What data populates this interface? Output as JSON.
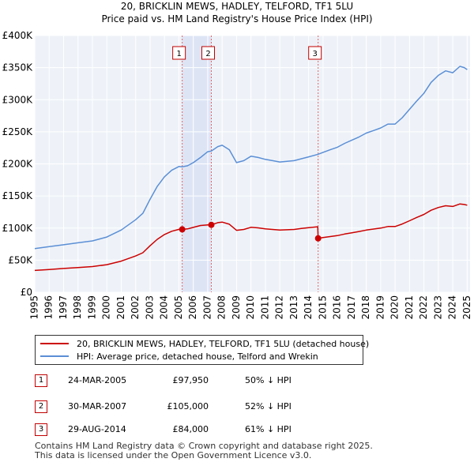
{
  "chart_data": {
    "type": "line",
    "title": "20, BRICKLIN MEWS, HADLEY, TELFORD, TF1 5LU",
    "subtitle": "Price paid vs. HM Land Registry's House Price Index (HPI)",
    "xlim": [
      1995,
      2025.2
    ],
    "ylim": [
      0,
      400000
    ],
    "x_ticks": [
      1995,
      1996,
      1997,
      1998,
      1999,
      2000,
      2001,
      2002,
      2003,
      2004,
      2005,
      2006,
      2007,
      2008,
      2009,
      2010,
      2011,
      2012,
      2013,
      2014,
      2015,
      2016,
      2017,
      2018,
      2019,
      2020,
      2021,
      2022,
      2023,
      2024,
      2025
    ],
    "y_ticks": [
      {
        "value": 0,
        "label": "£0"
      },
      {
        "value": 50000,
        "label": "£50K"
      },
      {
        "value": 100000,
        "label": "£100K"
      },
      {
        "value": 150000,
        "label": "£150K"
      },
      {
        "value": 200000,
        "label": "£200K"
      },
      {
        "value": 250000,
        "label": "£250K"
      },
      {
        "value": 300000,
        "label": "£300K"
      },
      {
        "value": 350000,
        "label": "£350K"
      },
      {
        "value": 400000,
        "label": "£400K"
      }
    ],
    "grid": true,
    "shaded_periods": [
      [
        2005.23,
        2007.25
      ]
    ],
    "series": [
      {
        "name": "HPI: Average price, detached house, Telford and Wrekin",
        "color": "#5b8fd6",
        "points": [
          [
            1995.0,
            68000
          ],
          [
            1996.0,
            71000
          ],
          [
            1997.0,
            74000
          ],
          [
            1998.0,
            77000
          ],
          [
            1999.0,
            80000
          ],
          [
            2000.0,
            86000
          ],
          [
            2001.0,
            97000
          ],
          [
            2002.0,
            113000
          ],
          [
            2002.5,
            123000
          ],
          [
            2003.0,
            145000
          ],
          [
            2003.5,
            165000
          ],
          [
            2004.0,
            180000
          ],
          [
            2004.5,
            190000
          ],
          [
            2005.0,
            196000
          ],
          [
            2005.23,
            195500
          ],
          [
            2005.6,
            197000
          ],
          [
            2006.0,
            202000
          ],
          [
            2006.5,
            210000
          ],
          [
            2007.0,
            219000
          ],
          [
            2007.25,
            220000
          ],
          [
            2007.7,
            227000
          ],
          [
            2008.0,
            229000
          ],
          [
            2008.5,
            222000
          ],
          [
            2009.0,
            202000
          ],
          [
            2009.5,
            205000
          ],
          [
            2010.0,
            212000
          ],
          [
            2010.5,
            210000
          ],
          [
            2011.0,
            207000
          ],
          [
            2011.5,
            205000
          ],
          [
            2012.0,
            203000
          ],
          [
            2012.5,
            204000
          ],
          [
            2013.0,
            205000
          ],
          [
            2013.5,
            208000
          ],
          [
            2014.0,
            211000
          ],
          [
            2014.66,
            215000
          ],
          [
            2015.0,
            218000
          ],
          [
            2015.5,
            222000
          ],
          [
            2016.0,
            226000
          ],
          [
            2016.5,
            232000
          ],
          [
            2017.0,
            237000
          ],
          [
            2017.5,
            242000
          ],
          [
            2018.0,
            248000
          ],
          [
            2018.5,
            252000
          ],
          [
            2019.0,
            256000
          ],
          [
            2019.5,
            262000
          ],
          [
            2020.0,
            262000
          ],
          [
            2020.5,
            272000
          ],
          [
            2021.0,
            285000
          ],
          [
            2021.5,
            298000
          ],
          [
            2022.0,
            310000
          ],
          [
            2022.5,
            327000
          ],
          [
            2023.0,
            338000
          ],
          [
            2023.5,
            345000
          ],
          [
            2024.0,
            342000
          ],
          [
            2024.5,
            352000
          ],
          [
            2024.8,
            350000
          ],
          [
            2025.0,
            347000
          ]
        ]
      },
      {
        "name": "20, BRICKLIN MEWS, HADLEY, TELFORD, TF1 5LU (detached house)",
        "color": "#cc0000",
        "points": [
          [
            1995.0,
            34000
          ],
          [
            1996.0,
            35500
          ],
          [
            1997.0,
            37000
          ],
          [
            1998.0,
            38500
          ],
          [
            1999.0,
            40000
          ],
          [
            2000.0,
            43000
          ],
          [
            2001.0,
            48500
          ],
          [
            2002.0,
            56500
          ],
          [
            2002.5,
            61500
          ],
          [
            2003.0,
            72500
          ],
          [
            2003.5,
            82500
          ],
          [
            2004.0,
            90000
          ],
          [
            2004.5,
            95000
          ],
          [
            2005.0,
            98000
          ],
          [
            2005.23,
            97950
          ],
          [
            2005.6,
            98700
          ],
          [
            2006.0,
            101000
          ],
          [
            2006.5,
            104000
          ],
          [
            2007.0,
            105000
          ],
          [
            2007.25,
            105000
          ],
          [
            2007.7,
            108400
          ],
          [
            2008.0,
            109300
          ],
          [
            2008.5,
            106000
          ],
          [
            2009.0,
            96500
          ],
          [
            2009.5,
            97900
          ],
          [
            2010.0,
            101200
          ],
          [
            2010.5,
            100300
          ],
          [
            2011.0,
            98800
          ],
          [
            2011.5,
            97900
          ],
          [
            2012.0,
            96900
          ],
          [
            2012.5,
            97400
          ],
          [
            2013.0,
            97900
          ],
          [
            2013.5,
            99300
          ],
          [
            2014.0,
            100700
          ],
          [
            2014.63,
            102000
          ],
          [
            2014.66,
            84000
          ],
          [
            2015.0,
            85200
          ],
          [
            2015.5,
            86800
          ],
          [
            2016.0,
            88300
          ],
          [
            2016.5,
            90700
          ],
          [
            2017.0,
            92600
          ],
          [
            2017.5,
            94600
          ],
          [
            2018.0,
            96900
          ],
          [
            2018.5,
            98500
          ],
          [
            2019.0,
            100000
          ],
          [
            2019.5,
            102400
          ],
          [
            2020.0,
            102400
          ],
          [
            2020.5,
            106300
          ],
          [
            2021.0,
            111400
          ],
          [
            2021.5,
            116500
          ],
          [
            2022.0,
            121200
          ],
          [
            2022.5,
            127800
          ],
          [
            2023.0,
            132100
          ],
          [
            2023.5,
            134800
          ],
          [
            2024.0,
            133700
          ],
          [
            2024.5,
            137600
          ],
          [
            2024.8,
            136800
          ],
          [
            2025.0,
            135600
          ]
        ]
      }
    ],
    "sales": [
      {
        "label": "1",
        "x": 2005.23,
        "value": 97950
      },
      {
        "label": "2",
        "x": 2007.25,
        "value": 105000
      },
      {
        "label": "3",
        "x": 2014.66,
        "value": 84000
      }
    ]
  },
  "legend": {
    "property_label": "20, BRICKLIN MEWS, HADLEY, TELFORD, TF1 5LU (detached house)",
    "hpi_label": "HPI: Average price, detached house, Telford and Wrekin"
  },
  "transactions": [
    {
      "num": "1",
      "date": "24-MAR-2005",
      "price": "£97,950",
      "hpi": "50% ↓ HPI"
    },
    {
      "num": "2",
      "date": "30-MAR-2007",
      "price": "£105,000",
      "hpi": "52% ↓ HPI"
    },
    {
      "num": "3",
      "date": "29-AUG-2014",
      "price": "£84,000",
      "hpi": "61% ↓ HPI"
    }
  ],
  "footer": "Contains HM Land Registry data © Crown copyright and database right 2025.\nThis data is licensed under the Open Government Licence v3.0."
}
